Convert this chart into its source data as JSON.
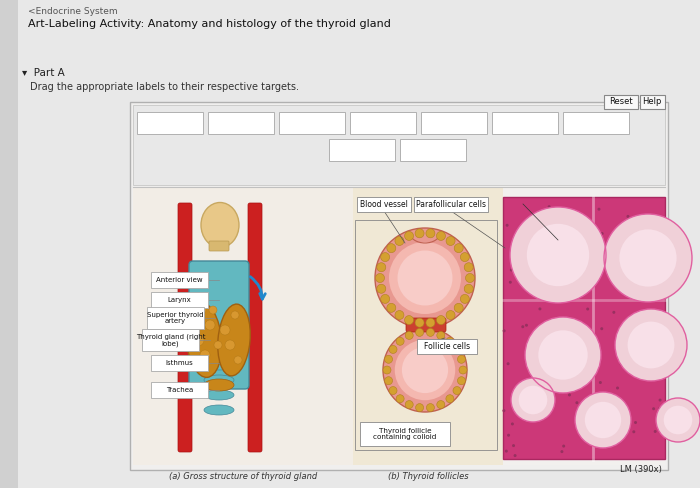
{
  "title_line1": "<Endocrine System",
  "title_line2": "Art-Labeling Activity: Anatomy and histology of the thyroid gland",
  "part_a": "Part A",
  "drag_instruction": "Drag the appropriate labels to their respective targets.",
  "bg_outer": "#c2c2c2",
  "bg_page": "#d4d4d4",
  "panel_bg": "#f0efee",
  "top_area_bg": "#ececec",
  "image_area_bg": "#f5f4f2",
  "left_diag_bg": "#f2ede6",
  "mid_area_bg": "#f0e8d5",
  "reset_btn": "Reset",
  "help_btn": "Help",
  "label_boxes": [
    "Anterior view",
    "Larynx",
    "Superior thyroid\nartery",
    "Thyroid gland (right\nlobe)",
    "Isthmus",
    "Trachea"
  ],
  "floating_labels": [
    "Blood vessel",
    "Parafollicular cells",
    "Follicle cells",
    "Thyroid follicle\ncontaining colloid"
  ],
  "bottom_captions": [
    "(a) Gross structure of thyroid gland",
    "(b) Thyroid follicles"
  ],
  "lm_label": "LM (390x)",
  "histo_bg": "#d4447a",
  "follicle_pink": "#f0a0b0",
  "follicle_light": "#f8d8e0",
  "bead_color": "#d4a030",
  "bead_edge": "#b08020"
}
